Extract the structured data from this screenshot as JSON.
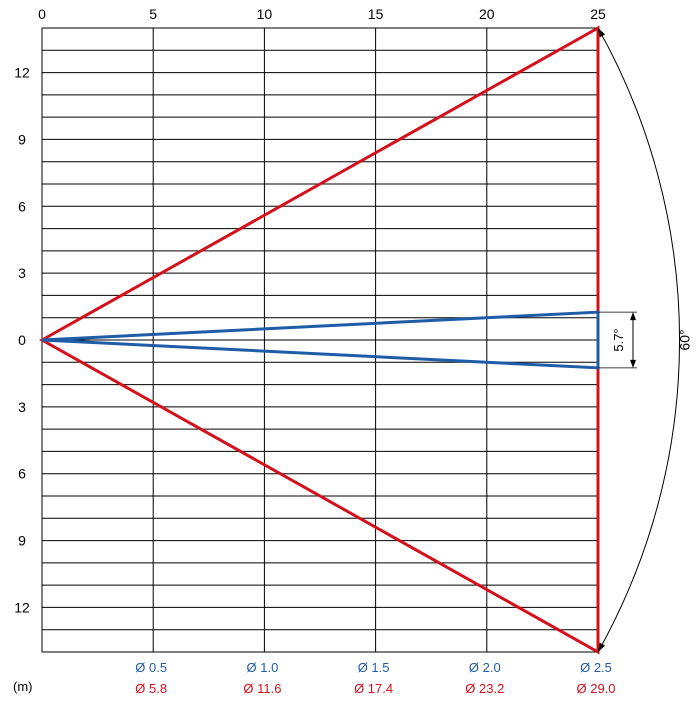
{
  "colors": {
    "blue": "#1f5ca6",
    "red": "#d4101a",
    "grid": "#000000",
    "text": "#000000"
  },
  "chart_data": {
    "type": "diagram",
    "top_axis": {
      "ticks": [
        0,
        5,
        10,
        15,
        20,
        25
      ],
      "range": [
        0,
        25
      ]
    },
    "left_axis": {
      "ticks": [
        {
          "v": 12,
          "label": "12"
        },
        {
          "v": 9,
          "label": "9"
        },
        {
          "v": 6,
          "label": "6"
        },
        {
          "v": 3,
          "label": "3"
        },
        {
          "v": 0,
          "label": "0"
        },
        {
          "v": -3,
          "label": "3"
        },
        {
          "v": -6,
          "label": "6"
        },
        {
          "v": -9,
          "label": "9"
        },
        {
          "v": -12,
          "label": "12"
        }
      ],
      "range": [
        -14,
        14
      ],
      "minor_step": 1
    },
    "unit_label": "(m)",
    "beams": [
      {
        "name_color": "blue",
        "angle_label": "5.7°",
        "origin": [
          0,
          0
        ],
        "end_distance": 25,
        "end_half_width": 1.25
      },
      {
        "name_color": "red",
        "angle_label": "60°",
        "origin": [
          0,
          0
        ],
        "end_distance": 25,
        "end_half_width": 14
      }
    ],
    "diameters": [
      {
        "x": 5,
        "blue": "Ø 0.5",
        "red": "Ø 5.8"
      },
      {
        "x": 10,
        "blue": "Ø 1.0",
        "red": "Ø 11.6"
      },
      {
        "x": 15,
        "blue": "Ø 1.5",
        "red": "Ø 17.4"
      },
      {
        "x": 20,
        "blue": "Ø 2.0",
        "red": "Ø 23.2"
      },
      {
        "x": 25,
        "blue": "Ø 2.5",
        "red": "Ø 29.0"
      }
    ]
  }
}
